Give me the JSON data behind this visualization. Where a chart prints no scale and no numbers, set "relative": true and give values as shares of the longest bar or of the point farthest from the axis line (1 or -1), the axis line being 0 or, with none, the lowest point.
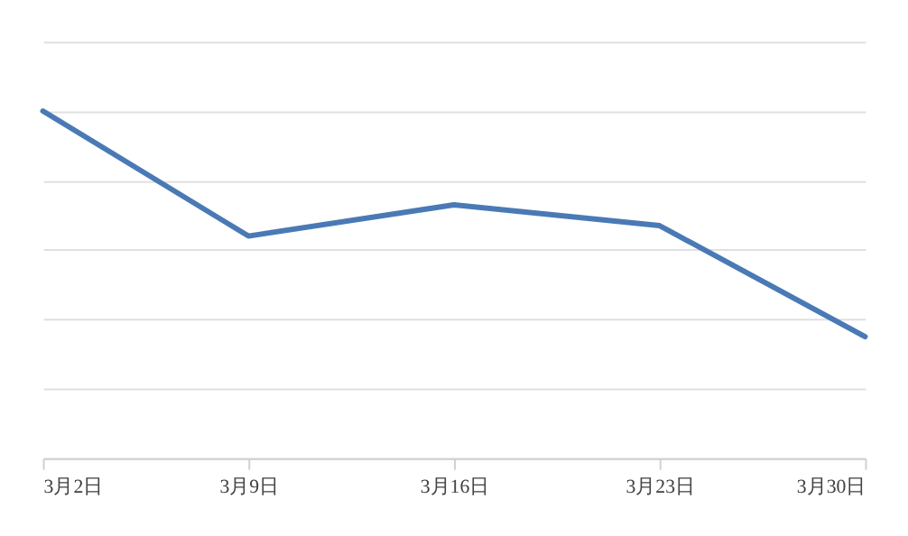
{
  "chart_data": {
    "type": "line",
    "relative": true,
    "categories": [
      "3月2日",
      "3月9日",
      "3月16日",
      "3月23日",
      "3月30日"
    ],
    "series": [
      {
        "color": "#4a7ab5",
        "values": [
          1,
          0.64,
          0.73,
          0.67,
          0.35
        ]
      }
    ],
    "grid": "y",
    "marker": "none",
    "line_style": "solid"
  }
}
